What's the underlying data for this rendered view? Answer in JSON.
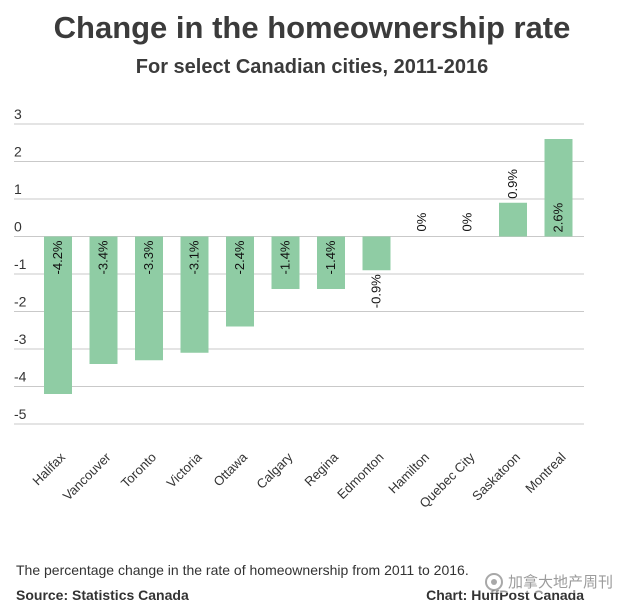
{
  "header": {
    "title": "Change in the homeownership rate",
    "subtitle": "For select Canadian cities, 2011-2016"
  },
  "footer": {
    "note": "The percentage change in the rate of homeownership from 2011 to 2016.",
    "source": "Source: Statistics Canada",
    "credit": "Chart: HuffPost Canada"
  },
  "watermark": {
    "text": "加拿大地产周刊",
    "icon": "wechat-icon"
  },
  "colors": {
    "bar": "#8fcca4",
    "grid": "#c9c9c9",
    "text": "#333333"
  },
  "chart_data": {
    "type": "bar",
    "title": "Change in the homeownership rate",
    "subtitle": "For select Canadian cities, 2011-2016",
    "xlabel": "",
    "ylabel": "",
    "ylim": [
      -5,
      3
    ],
    "yticks": [
      "3",
      "2",
      "1",
      "0",
      "-1",
      "-2",
      "-3",
      "-4",
      "-5"
    ],
    "grid": true,
    "categories": [
      "Halifax",
      "Vancouver",
      "Toronto",
      "Victoria",
      "Ottawa",
      "Calgary",
      "Regina",
      "Edmonton",
      "Hamilton",
      "Quebec City",
      "Saskatoon",
      "Montreal"
    ],
    "values": [
      -4.2,
      -3.4,
      -3.3,
      -3.1,
      -2.4,
      -1.4,
      -1.4,
      -0.9,
      0,
      0,
      0.9,
      2.6
    ],
    "data_labels": [
      "-4.2%",
      "-3.4%",
      "-3.3%",
      "-3.1%",
      "-2.4%",
      "-1.4%",
      "-1.4%",
      "-0.9%",
      "0%",
      "0%",
      "0.9%",
      "2.6%"
    ]
  }
}
